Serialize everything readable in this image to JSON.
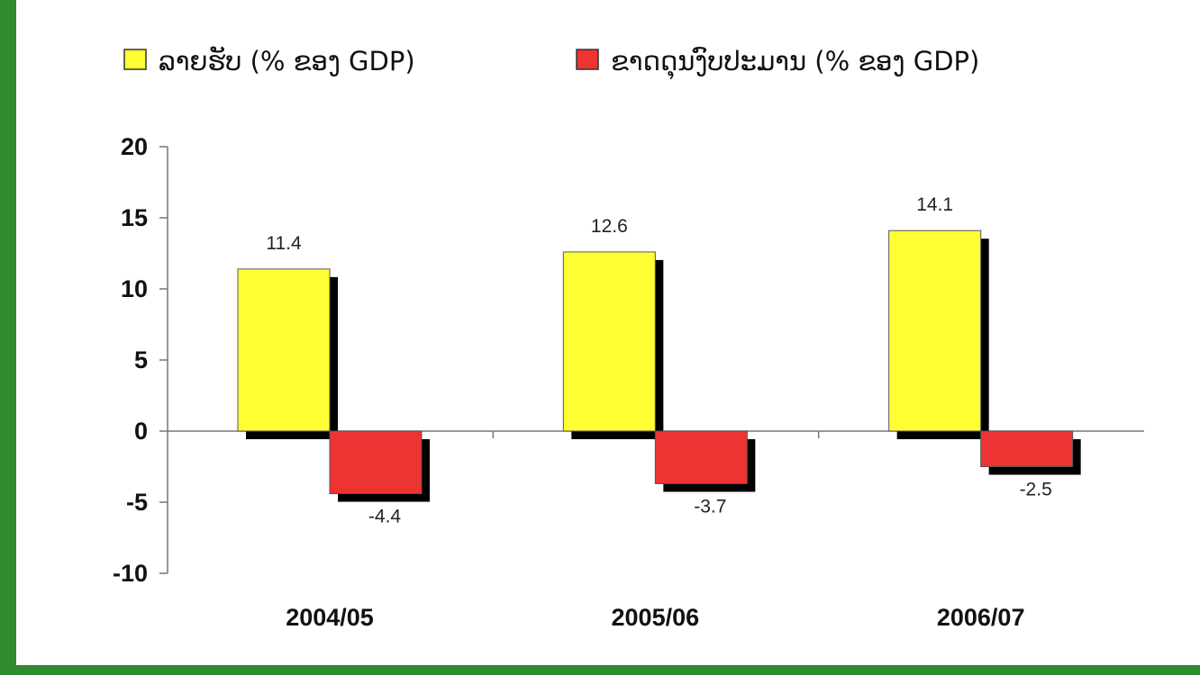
{
  "colors": {
    "frame_border": "#2e8b2e",
    "series_1": "#ffff33",
    "series_2": "#ee3333",
    "shadow": "#000000"
  },
  "chart_data": {
    "type": "bar",
    "categories": [
      "2004/05",
      "2005/06",
      "2006/07"
    ],
    "series": [
      {
        "name": "ລາຍຮັບ (% ຂອງ GDP)",
        "values": [
          11.4,
          12.6,
          14.1
        ],
        "labels": [
          "11.4",
          "12.6",
          "14.1"
        ]
      },
      {
        "name": "ຂາດດຸນງົບປະມານ (% ຂອງ GDP)",
        "values": [
          -4.4,
          -3.7,
          -2.5
        ],
        "labels": [
          "-4.4",
          "-3.7",
          "-2.5"
        ]
      }
    ],
    "ylim": [
      -10,
      20
    ],
    "yticks": [
      20,
      15,
      10,
      5,
      0,
      -5,
      -10
    ],
    "legend_position": "top",
    "grid": false
  }
}
